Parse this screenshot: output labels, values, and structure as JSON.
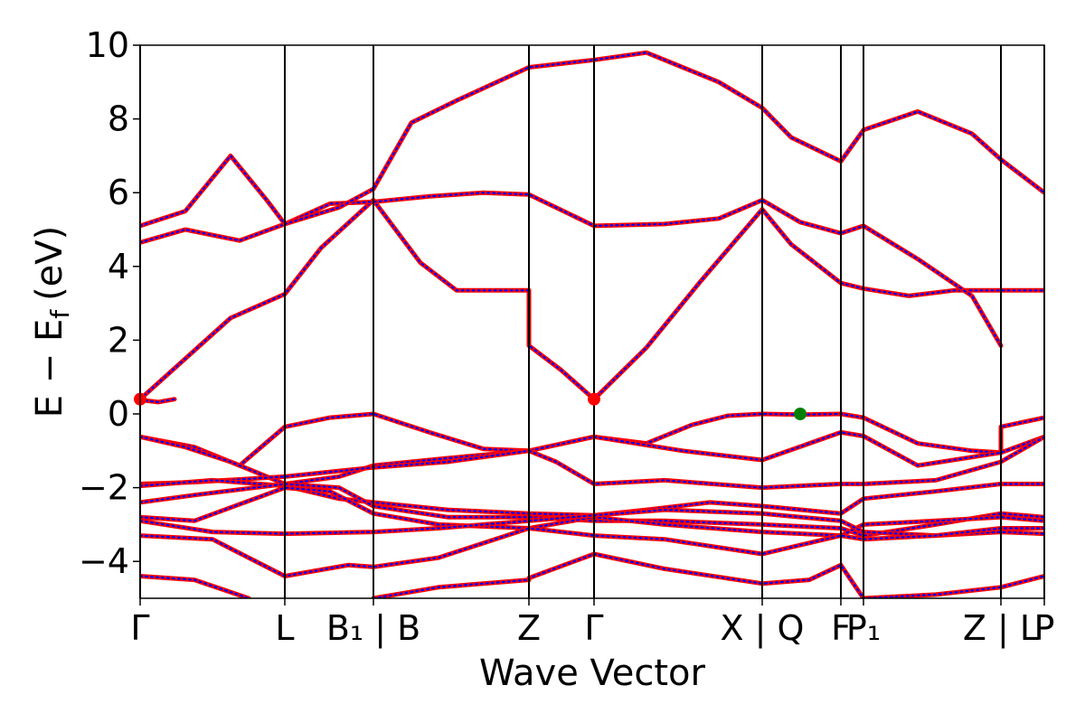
{
  "chart_data": {
    "type": "line",
    "title": "",
    "xlabel": "Wave Vector",
    "ylabel": "E − E",
    "ylabel_sub": "f",
    "ylabel_unit": "(eV)",
    "ylim": [
      -5,
      10
    ],
    "yticks": [
      {
        "value": -4,
        "label": "−4"
      },
      {
        "value": -2,
        "label": "−2"
      },
      {
        "value": 0,
        "label": "0"
      },
      {
        "value": 2,
        "label": "2"
      },
      {
        "value": 4,
        "label": "4"
      },
      {
        "value": 6,
        "label": "6"
      },
      {
        "value": 8,
        "label": "8"
      },
      {
        "value": 10,
        "label": "10"
      }
    ],
    "xlim": [
      0,
      10
    ],
    "kpoint_lines": [
      0,
      1.6,
      2.58,
      4.3,
      5.02,
      6.88,
      7.75,
      8.0,
      9.52,
      10
    ],
    "kpoint_labels": [
      {
        "x": 0,
        "label": "Γ"
      },
      {
        "x": 1.6,
        "label": "L"
      },
      {
        "x": 2.58,
        "label": "B₁ | B"
      },
      {
        "x": 4.3,
        "label": "Z"
      },
      {
        "x": 5.02,
        "label": "Γ"
      },
      {
        "x": 6.88,
        "label": "X | Q"
      },
      {
        "x": 7.75,
        "label": "F"
      },
      {
        "x": 8.0,
        "label": "P₁"
      },
      {
        "x": 9.52,
        "label": "Z | L"
      },
      {
        "x": 10,
        "label": "P"
      }
    ],
    "series": [
      {
        "color": "#ff0000",
        "style": "solid"
      },
      {
        "color": "#0000ff",
        "style": "dotted"
      }
    ],
    "bands": [
      [
        [
          0,
          0.4
        ],
        [
          0.5,
          1.5
        ],
        [
          1.0,
          2.6
        ],
        [
          1.6,
          3.25
        ],
        [
          2.0,
          4.5
        ],
        [
          2.58,
          5.8
        ],
        [
          3.1,
          4.1
        ],
        [
          3.5,
          3.35
        ],
        [
          4.3,
          3.35
        ],
        [
          4.3,
          1.85
        ],
        [
          4.65,
          1.2
        ],
        [
          5.02,
          0.4
        ],
        [
          5.6,
          1.8
        ],
        [
          6.2,
          3.6
        ],
        [
          6.88,
          5.55
        ],
        [
          7.2,
          4.6
        ],
        [
          7.75,
          3.55
        ],
        [
          8.0,
          3.4
        ],
        [
          8.5,
          3.2
        ],
        [
          9.0,
          3.35
        ],
        [
          9.52,
          3.35
        ],
        [
          10,
          3.35
        ]
      ],
      [
        [
          0,
          4.65
        ],
        [
          0.5,
          5.0
        ],
        [
          1.1,
          4.7
        ],
        [
          1.6,
          5.15
        ],
        [
          2.1,
          5.7
        ],
        [
          2.58,
          5.75
        ],
        [
          3.2,
          5.9
        ],
        [
          3.8,
          6.0
        ],
        [
          4.3,
          5.95
        ],
        [
          5.02,
          5.1
        ],
        [
          5.8,
          5.15
        ],
        [
          6.4,
          5.3
        ],
        [
          6.88,
          5.8
        ],
        [
          7.3,
          5.2
        ],
        [
          7.75,
          4.9
        ],
        [
          8.0,
          5.1
        ],
        [
          8.6,
          4.2
        ],
        [
          9.2,
          3.2
        ],
        [
          9.52,
          1.85
        ]
      ],
      [
        [
          0,
          5.1
        ],
        [
          0.5,
          5.5
        ],
        [
          1.0,
          7.0
        ],
        [
          1.4,
          5.8
        ],
        [
          1.6,
          5.15
        ],
        [
          2.2,
          5.6
        ],
        [
          2.58,
          6.1
        ],
        [
          3.0,
          7.9
        ],
        [
          3.5,
          8.5
        ],
        [
          4.3,
          9.4
        ],
        [
          5.02,
          9.6
        ],
        [
          5.6,
          9.8
        ],
        [
          6.4,
          9.0
        ],
        [
          6.88,
          8.3
        ],
        [
          7.2,
          7.5
        ],
        [
          7.75,
          6.85
        ],
        [
          8.0,
          7.7
        ],
        [
          8.6,
          8.2
        ],
        [
          9.2,
          7.6
        ],
        [
          9.52,
          6.9
        ],
        [
          10,
          6.0
        ]
      ],
      [
        [
          0,
          0.38
        ],
        [
          0.2,
          0.32
        ],
        [
          0.38,
          0.4
        ]
      ],
      [
        [
          0,
          -0.62
        ],
        [
          0.6,
          -0.9
        ],
        [
          1.1,
          -1.4
        ],
        [
          1.6,
          -0.35
        ],
        [
          2.1,
          -0.1
        ],
        [
          2.58,
          0.0
        ],
        [
          3.2,
          -0.5
        ],
        [
          3.8,
          -0.95
        ],
        [
          4.3,
          -1.0
        ],
        [
          5.02,
          -0.62
        ],
        [
          5.6,
          -0.8
        ],
        [
          6.1,
          -0.3
        ],
        [
          6.5,
          -0.05
        ],
        [
          6.88,
          0.0
        ],
        [
          7.3,
          -0.02
        ],
        [
          7.75,
          0.0
        ],
        [
          8.0,
          -0.1
        ],
        [
          8.6,
          -0.8
        ],
        [
          9.2,
          -1.0
        ],
        [
          9.52,
          -1.05
        ],
        [
          9.52,
          -0.35
        ],
        [
          10,
          -0.1
        ]
      ],
      [
        [
          0,
          -0.62
        ],
        [
          0.5,
          -0.9
        ],
        [
          1.0,
          -1.3
        ],
        [
          1.6,
          -1.9
        ],
        [
          2.2,
          -1.7
        ],
        [
          2.58,
          -1.4
        ],
        [
          3.4,
          -1.2
        ],
        [
          4.3,
          -1.0
        ],
        [
          5.02,
          -0.62
        ],
        [
          6.0,
          -1.0
        ],
        [
          6.88,
          -1.25
        ],
        [
          7.75,
          -0.5
        ],
        [
          8.0,
          -0.6
        ],
        [
          8.6,
          -1.4
        ],
        [
          9.52,
          -1.05
        ],
        [
          10,
          -0.62
        ]
      ],
      [
        [
          0,
          -1.9
        ],
        [
          0.6,
          -1.85
        ],
        [
          1.6,
          -1.7
        ],
        [
          2.58,
          -1.45
        ],
        [
          3.4,
          -1.3
        ],
        [
          4.3,
          -1.0
        ],
        [
          4.6,
          -1.3
        ],
        [
          5.02,
          -1.9
        ],
        [
          5.8,
          -1.8
        ],
        [
          6.88,
          -2.0
        ],
        [
          7.75,
          -1.9
        ],
        [
          8.0,
          -1.9
        ],
        [
          8.8,
          -1.8
        ],
        [
          9.52,
          -1.3
        ],
        [
          10,
          -0.62
        ]
      ],
      [
        [
          0,
          -1.95
        ],
        [
          0.8,
          -1.8
        ],
        [
          1.6,
          -1.95
        ],
        [
          2.2,
          -2.3
        ],
        [
          2.58,
          -2.4
        ],
        [
          3.4,
          -2.6
        ],
        [
          4.3,
          -2.7
        ],
        [
          5.02,
          -2.75
        ],
        [
          5.6,
          -2.6
        ],
        [
          6.3,
          -2.4
        ],
        [
          6.88,
          -2.5
        ],
        [
          7.75,
          -2.7
        ],
        [
          8.0,
          -2.3
        ],
        [
          8.8,
          -2.1
        ],
        [
          9.52,
          -1.9
        ],
        [
          10,
          -1.9
        ]
      ],
      [
        [
          0,
          -2.4
        ],
        [
          0.6,
          -2.2
        ],
        [
          1.6,
          -1.9
        ],
        [
          2.2,
          -2.0
        ],
        [
          2.58,
          -2.5
        ],
        [
          3.4,
          -2.8
        ],
        [
          4.3,
          -2.8
        ],
        [
          5.02,
          -2.9
        ],
        [
          5.8,
          -2.9
        ],
        [
          6.88,
          -3.0
        ],
        [
          7.75,
          -3.1
        ],
        [
          8.0,
          -3.3
        ],
        [
          8.8,
          -3.0
        ],
        [
          9.52,
          -2.7
        ],
        [
          10,
          -2.8
        ]
      ],
      [
        [
          0,
          -2.8
        ],
        [
          0.6,
          -2.9
        ],
        [
          1.6,
          -2.0
        ],
        [
          2.1,
          -2.1
        ],
        [
          2.58,
          -2.7
        ],
        [
          3.3,
          -3.0
        ],
        [
          4.3,
          -3.1
        ],
        [
          5.02,
          -2.8
        ],
        [
          5.8,
          -3.0
        ],
        [
          6.88,
          -3.2
        ],
        [
          7.75,
          -3.3
        ],
        [
          8.0,
          -3.0
        ],
        [
          8.8,
          -2.9
        ],
        [
          9.52,
          -2.8
        ],
        [
          10,
          -2.9
        ]
      ],
      [
        [
          0,
          -2.9
        ],
        [
          0.8,
          -3.2
        ],
        [
          1.6,
          -3.25
        ],
        [
          2.58,
          -3.2
        ],
        [
          3.3,
          -3.1
        ],
        [
          4.3,
          -2.9
        ],
        [
          5.02,
          -2.75
        ],
        [
          5.8,
          -2.6
        ],
        [
          6.88,
          -2.7
        ],
        [
          7.75,
          -2.9
        ],
        [
          8.0,
          -3.2
        ],
        [
          8.8,
          -3.3
        ],
        [
          9.52,
          -3.2
        ],
        [
          10,
          -3.25
        ]
      ],
      [
        [
          0,
          -3.3
        ],
        [
          0.8,
          -3.4
        ],
        [
          1.6,
          -4.4
        ],
        [
          2.3,
          -4.1
        ],
        [
          2.58,
          -4.15
        ],
        [
          3.3,
          -3.9
        ],
        [
          4.3,
          -3.1
        ],
        [
          5.02,
          -3.3
        ],
        [
          5.8,
          -3.4
        ],
        [
          6.88,
          -3.8
        ],
        [
          7.75,
          -3.3
        ],
        [
          8.0,
          -3.4
        ],
        [
          8.8,
          -3.3
        ],
        [
          9.52,
          -3.1
        ],
        [
          10,
          -3.1
        ]
      ],
      [
        [
          2.58,
          -5.0
        ],
        [
          3.3,
          -4.7
        ],
        [
          4.3,
          -4.5
        ],
        [
          4.3,
          -4.45
        ],
        [
          5.02,
          -3.8
        ],
        [
          5.8,
          -4.2
        ],
        [
          6.88,
          -4.6
        ],
        [
          7.4,
          -4.5
        ],
        [
          7.75,
          -4.1
        ],
        [
          8.0,
          -5.0
        ],
        [
          8.8,
          -4.9
        ],
        [
          9.52,
          -4.7
        ],
        [
          10,
          -4.4
        ]
      ],
      [
        [
          0,
          -4.4
        ],
        [
          0.6,
          -4.5
        ],
        [
          1.2,
          -5.0
        ]
      ]
    ],
    "markers": [
      {
        "x": 0,
        "y": 0.4,
        "color": "#ff0000"
      },
      {
        "x": 5.02,
        "y": 0.4,
        "color": "#ff0000"
      },
      {
        "x": 7.3,
        "y": 0.0,
        "color": "#008000"
      }
    ],
    "grid": false,
    "legend": false
  }
}
